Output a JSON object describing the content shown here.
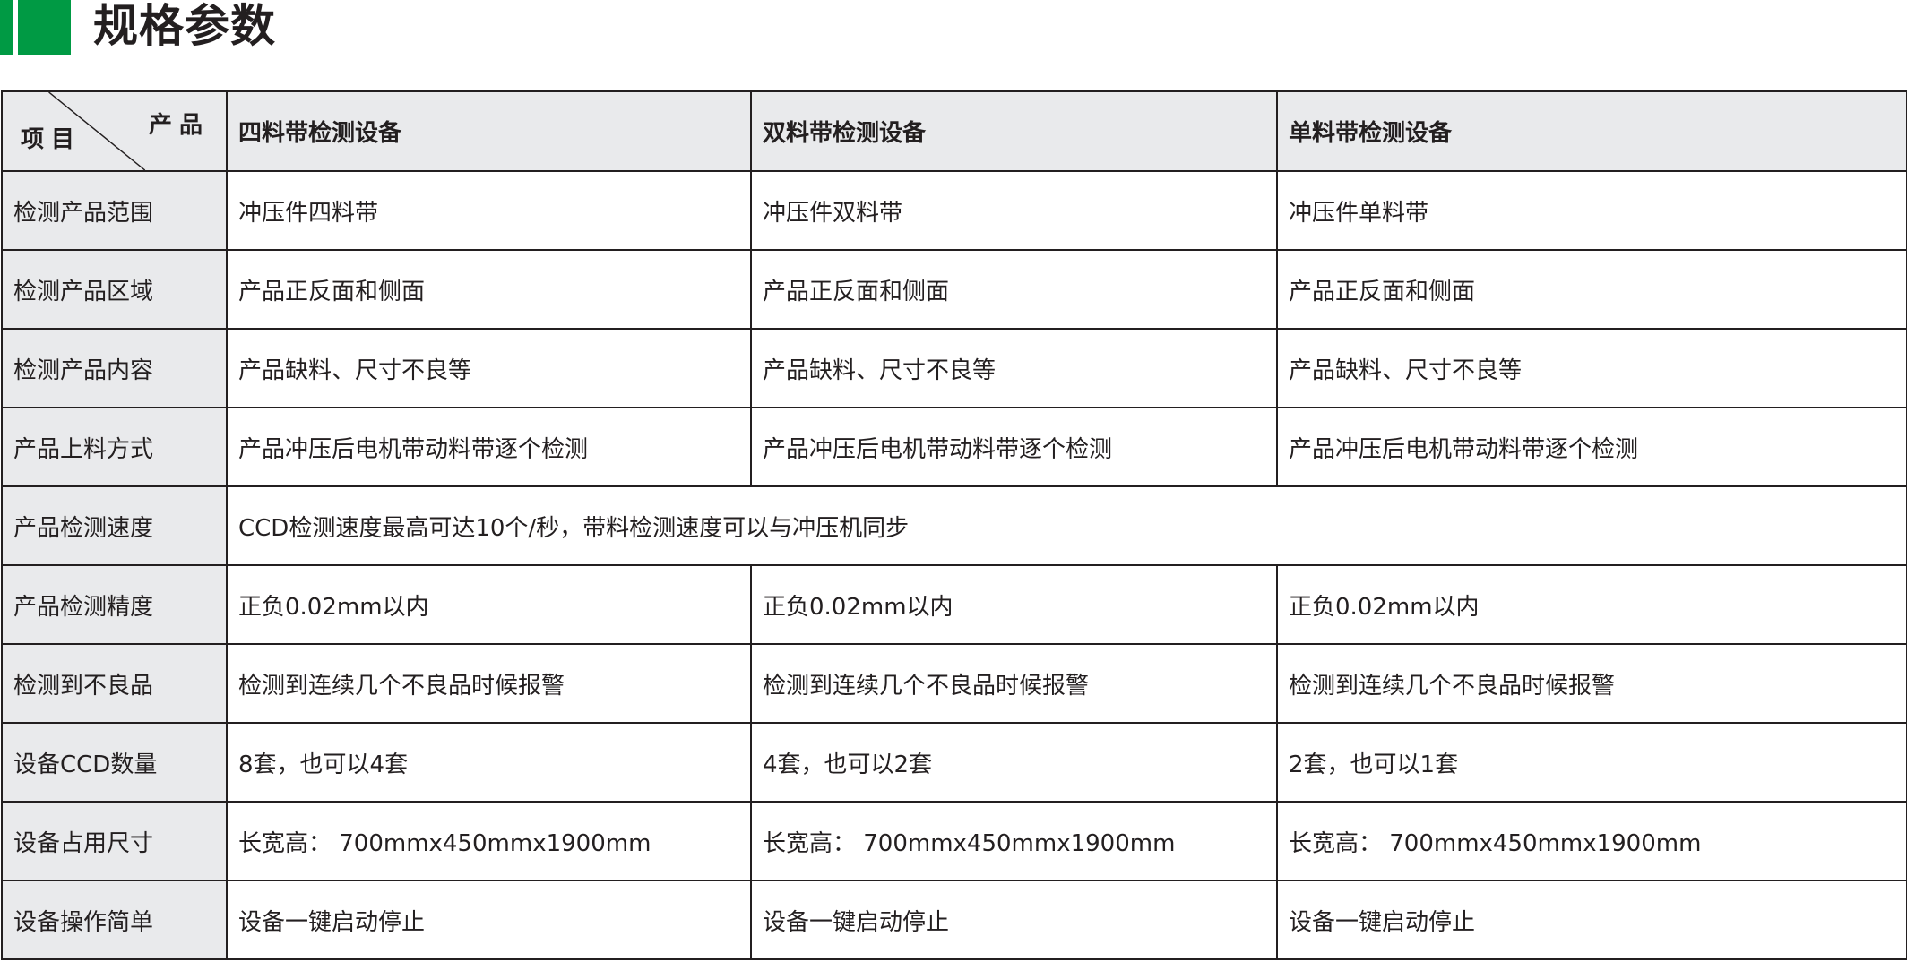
{
  "header": {
    "title": "规格参数",
    "accent_color": "#009a44"
  },
  "table": {
    "corner": {
      "product_label": "产品",
      "item_label": "项目"
    },
    "columns": [
      "四料带检测设备",
      "双料带检测设备",
      "单料带检测设备"
    ],
    "rows": [
      {
        "label": "检测产品范围",
        "values": [
          "冲压件四料带",
          "冲压件双料带",
          "冲压件单料带"
        ]
      },
      {
        "label": "检测产品区域",
        "values": [
          "产品正反面和侧面",
          "产品正反面和侧面",
          "产品正反面和侧面"
        ]
      },
      {
        "label": "检测产品内容",
        "values": [
          "产品缺料、尺寸不良等",
          "产品缺料、尺寸不良等",
          "产品缺料、尺寸不良等"
        ]
      },
      {
        "label": "产品上料方式",
        "values": [
          "产品冲压后电机带动料带逐个检测",
          "产品冲压后电机带动料带逐个检测",
          "产品冲压后电机带动料带逐个检测"
        ]
      },
      {
        "label": "产品检测速度",
        "merged": "CCD检测速度最高可达10个/秒，带料检测速度可以与冲压机同步"
      },
      {
        "label": "产品检测精度",
        "values": [
          "正负0.02mm以内",
          "正负0.02mm以内",
          "正负0.02mm以内"
        ]
      },
      {
        "label": "检测到不良品",
        "values": [
          "检测到连续几个不良品时候报警",
          "检测到连续几个不良品时候报警",
          "检测到连续几个不良品时候报警"
        ]
      },
      {
        "label": "设备CCD数量",
        "values": [
          "8套，也可以4套",
          "4套，也可以2套",
          "2套，也可以1套"
        ]
      },
      {
        "label": "设备占用尺寸",
        "values": [
          "长宽高： 700mmx450mmx1900mm",
          "长宽高： 700mmx450mmx1900mm",
          "长宽高： 700mmx450mmx1900mm"
        ]
      },
      {
        "label": "设备操作简单",
        "values": [
          "设备一键启动停止",
          "设备一键启动停止",
          "设备一键启动停止"
        ]
      }
    ]
  }
}
